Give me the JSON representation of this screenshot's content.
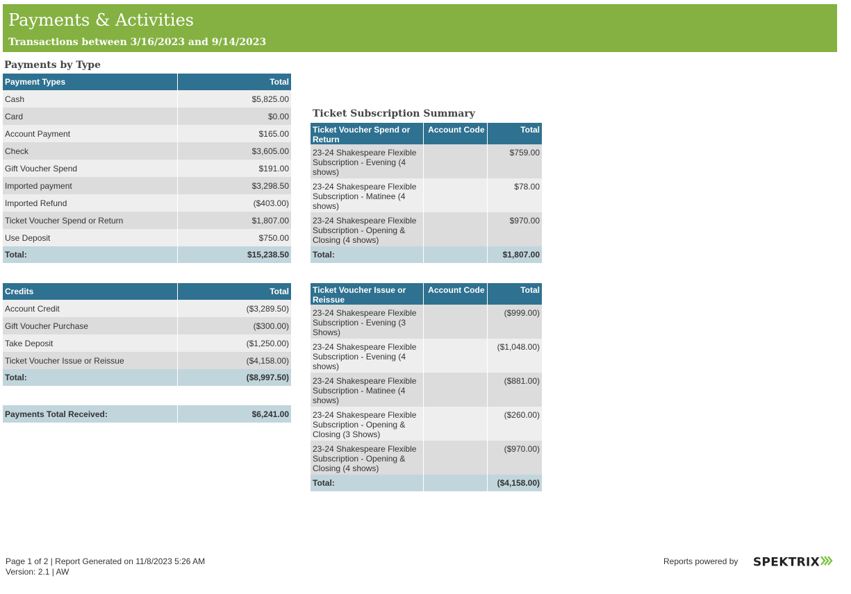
{
  "header": {
    "title": "Payments & Activities",
    "subtitle": "Transactions between 3/16/2023 and 9/14/2023"
  },
  "payments_by_type": {
    "section_title": "Payments by Type",
    "columns": [
      "Payment Types",
      "Total"
    ],
    "rows": [
      {
        "label": "Cash",
        "total": "$5,825.00"
      },
      {
        "label": "Card",
        "total": "$0.00"
      },
      {
        "label": "Account Payment",
        "total": "$165.00"
      },
      {
        "label": "Check",
        "total": "$3,605.00"
      },
      {
        "label": "Gift Voucher Spend",
        "total": "$191.00"
      },
      {
        "label": "Imported payment",
        "total": "$3,298.50"
      },
      {
        "label": "Imported Refund",
        "total": "($403.00)"
      },
      {
        "label": "Ticket Voucher Spend or Return",
        "total": "$1,807.00"
      },
      {
        "label": "Use Deposit",
        "total": "$750.00"
      }
    ],
    "total_label": "Total:",
    "total_value": "$15,238.50"
  },
  "credits": {
    "columns": [
      "Credits",
      "Total"
    ],
    "rows": [
      {
        "label": "Account Credit",
        "total": "($3,289.50)"
      },
      {
        "label": "Gift Voucher Purchase",
        "total": "($300.00)"
      },
      {
        "label": "Take Deposit",
        "total": "($1,250.00)"
      },
      {
        "label": "Ticket Voucher Issue or Reissue",
        "total": "($4,158.00)"
      }
    ],
    "total_label": "Total:",
    "total_value": "($8,997.50)"
  },
  "payments_total": {
    "label": "Payments Total Received:",
    "value": "$6,241.00"
  },
  "ticket_subscription_summary": {
    "section_title": "Ticket Subscription Summary",
    "spend": {
      "columns": [
        "Ticket Voucher Spend or Return",
        "Account Code",
        "Total"
      ],
      "rows": [
        {
          "label": "23-24 Shakespeare Flexible Subscription - Evening (4 shows)",
          "code": "",
          "total": "$759.00"
        },
        {
          "label": "23-24 Shakespeare Flexible Subscription - Matinee (4 shows)",
          "code": "",
          "total": "$78.00"
        },
        {
          "label": "23-24 Shakespeare Flexible Subscription - Opening & Closing (4 shows)",
          "code": "",
          "total": "$970.00"
        }
      ],
      "total_label": "Total:",
      "total_value": "$1,807.00"
    },
    "issue": {
      "columns": [
        "Ticket Voucher Issue or Reissue",
        "Account Code",
        "Total"
      ],
      "rows": [
        {
          "label": "23-24 Shakespeare Flexible Subscription - Evening (3 Shows)",
          "code": "",
          "total": "($999.00)"
        },
        {
          "label": "23-24 Shakespeare Flexible Subscription - Evening (4 shows)",
          "code": "",
          "total": "($1,048.00)"
        },
        {
          "label": "23-24 Shakespeare Flexible Subscription - Matinee (4 shows)",
          "code": "",
          "total": "($881.00)"
        },
        {
          "label": "23-24 Shakespeare Flexible Subscription - Opening & Closing (3 Shows)",
          "code": "",
          "total": "($260.00)"
        },
        {
          "label": "23-24 Shakespeare Flexible Subscription - Opening & Closing (4 shows)",
          "code": "",
          "total": "($970.00)"
        }
      ],
      "total_label": "Total:",
      "total_value": "($4,158.00)"
    }
  },
  "footer": {
    "page_info": "Page 1 of 2 | Report Generated on 11/8/2023 5:26 AM",
    "version": "Version: 2.1 | AW",
    "powered_by": "Reports powered by",
    "logo_text": "SPEKTRIX",
    "logo_icon": "spektrix-chevrons-icon"
  },
  "colors": {
    "banner": "#84b141",
    "table_header": "#2f7190",
    "total_row": "#c1d5dc",
    "row_light": "#eeeeee",
    "row_dark": "#dcdcdc",
    "logo_accent": "#7cc242"
  }
}
